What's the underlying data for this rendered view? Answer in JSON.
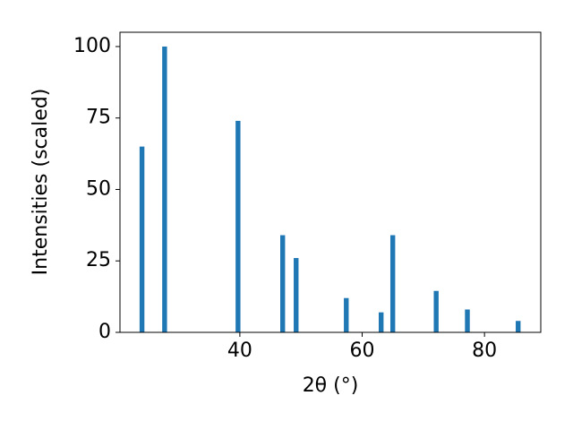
{
  "chart_data": {
    "type": "bar",
    "x_label": "2θ (°)",
    "y_label": "Intensities (scaled)",
    "x": [
      24.0,
      27.7,
      39.7,
      47.0,
      49.2,
      57.4,
      63.1,
      65.0,
      72.1,
      77.2,
      85.5
    ],
    "values": [
      65,
      100,
      74,
      34,
      26,
      12,
      7,
      34,
      14.5,
      8,
      4
    ],
    "color": "#1f77b4",
    "xlim": [
      20.4,
      89.2
    ],
    "xticks": [
      40,
      60,
      80
    ],
    "ylim": [
      0,
      105
    ],
    "yticks": [
      0,
      25,
      50,
      75,
      100
    ],
    "grid": false
  }
}
